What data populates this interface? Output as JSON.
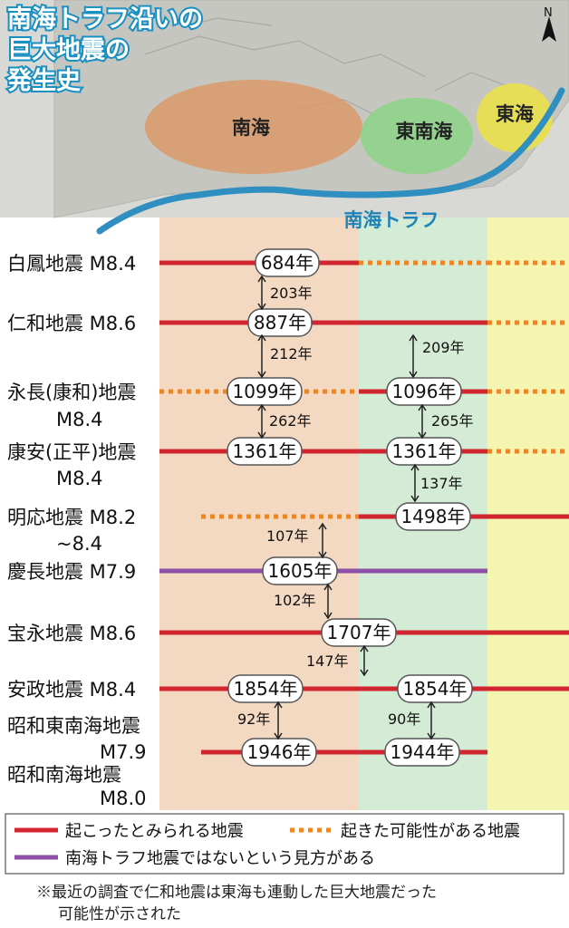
{
  "title": [
    "南海トラフ沿いの",
    "巨大地震の",
    "発生史"
  ],
  "regions": {
    "nankai": "南海",
    "tonankai": "東南海",
    "tokai": "東海"
  },
  "trough_label": "南海トラフ",
  "colors": {
    "occurred": "#d1262f",
    "possible": "#e8862a",
    "not_trough": "#8e4fa6",
    "nankai_band": "#f3d8c2",
    "tonankai_band": "#d4ebd5",
    "tokai_band": "#f5f5b2",
    "title_stroke": "#1a8fc2",
    "trough_line": "#2f8fc0"
  },
  "earthquakes": [
    {
      "label": [
        "白鳳地震 M8.4"
      ],
      "nankai": "684年",
      "tonankai": "",
      "segments": [
        [
          "nankai",
          "occurred"
        ],
        [
          "tonankai",
          "possible"
        ],
        [
          "tokai",
          "possible"
        ]
      ]
    },
    {
      "label": [
        "仁和地震 M8.6"
      ],
      "nankai": "887年",
      "tonankai": "",
      "segments": [
        [
          "nankai",
          "occurred"
        ],
        [
          "tonankai",
          "occurred"
        ],
        [
          "tokai",
          "possible"
        ]
      ]
    },
    {
      "label": [
        "永長(康和)地震",
        "M8.4"
      ],
      "nankai": "1099年",
      "tonankai": "1096年",
      "segments": [
        [
          "nankai",
          "possible"
        ],
        [
          "tonankai",
          "occurred"
        ],
        [
          "tokai",
          "possible"
        ]
      ]
    },
    {
      "label": [
        "康安(正平)地震",
        "M8.4"
      ],
      "nankai": "1361年",
      "tonankai": "1361年",
      "segments": [
        [
          "nankai",
          "occurred"
        ],
        [
          "tonankai",
          "occurred"
        ],
        [
          "tokai",
          "possible"
        ]
      ]
    },
    {
      "label": [
        "明応地震 M8.2",
        "~8.4"
      ],
      "nankai": "",
      "tonankai": "1498年",
      "segments": [
        [
          "nankai_part",
          "possible"
        ],
        [
          "tonankai",
          "occurred"
        ],
        [
          "tokai",
          "occurred"
        ]
      ]
    },
    {
      "label": [
        "慶長地震 M7.9"
      ],
      "nankai": "1605年",
      "tonankai": "",
      "segments": [
        [
          "nankai",
          "not_trough"
        ],
        [
          "tonankai",
          "not_trough"
        ]
      ]
    },
    {
      "label": [
        "宝永地震 M8.6"
      ],
      "nankai": "1707年",
      "tonankai": "",
      "segments": [
        [
          "nankai",
          "occurred"
        ],
        [
          "tonankai",
          "occurred"
        ],
        [
          "tokai",
          "occurred"
        ]
      ]
    },
    {
      "label": [
        "安政地震 M8.4"
      ],
      "nankai": "1854年",
      "tonankai": "1854年",
      "segments": [
        [
          "nankai",
          "occurred"
        ],
        [
          "tonankai",
          "occurred"
        ],
        [
          "tokai",
          "occurred"
        ]
      ]
    },
    {
      "label": [
        "昭和東南海地震",
        "M7.9",
        "昭和南海地震",
        "M8.0"
      ],
      "nankai": "1946年",
      "tonankai": "1944年",
      "segments": [
        [
          "nankai_part",
          "occurred"
        ],
        [
          "tonankai",
          "occurred"
        ]
      ]
    }
  ],
  "intervals_nankai": [
    "203年",
    "212年",
    "262年",
    "107年",
    "102年",
    "147年",
    "92年"
  ],
  "intervals_tonankai": [
    "209年",
    "265年",
    "137年",
    "90年"
  ],
  "legend": {
    "occurred": "起こったとみられる地震",
    "possible": "起きた可能性がある地震",
    "not_trough": "南海トラフ地震ではないという見方がある"
  },
  "note": [
    "※最近の調査で仁和地震は東海も連動した巨大地震だった",
    "可能性が示された"
  ]
}
